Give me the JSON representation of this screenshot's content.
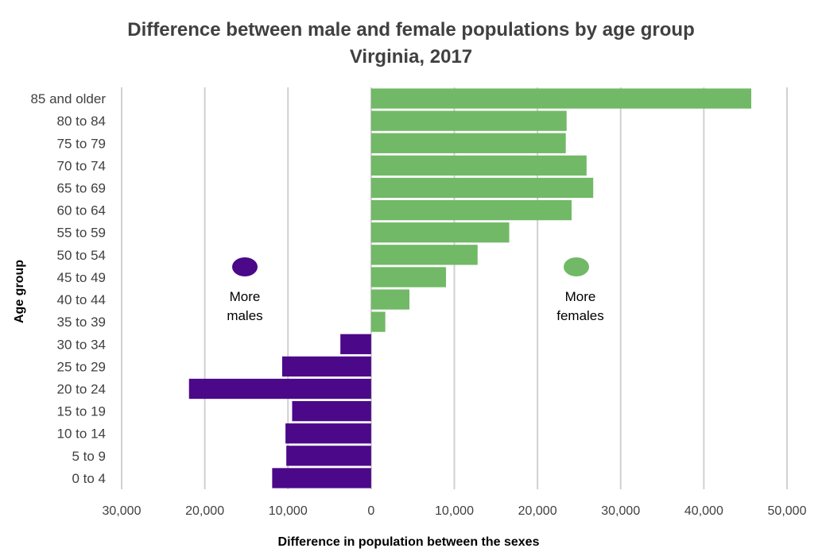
{
  "chart_data": {
    "type": "bar",
    "orientation": "horizontal",
    "title": "Difference between male and female populations by age group",
    "subtitle": "Virginia, 2017",
    "xlabel": "Difference in population between the sexes",
    "ylabel": "Age group",
    "xlim": [
      -30000,
      50000
    ],
    "xticks": [
      -30000,
      -20000,
      -10000,
      0,
      10000,
      20000,
      30000,
      40000,
      50000
    ],
    "xtick_labels": [
      "30,000",
      "20,000",
      "10,000",
      "0",
      "10,000",
      "20,000",
      "30,000",
      "40,000",
      "50,000"
    ],
    "grid": true,
    "categories": [
      "85 and older",
      "80 to 84",
      "75 to 79",
      "70 to 74",
      "65 to 69",
      "60 to 64",
      "55 to 59",
      "50 to 54",
      "45 to 49",
      "40 to 44",
      "35 to 39",
      "30 to 34",
      "25 to 29",
      "20 to 24",
      "15 to 19",
      "10 to 14",
      "5 to 9",
      "0 to 4"
    ],
    "values": [
      45700,
      23500,
      23400,
      25900,
      26700,
      24100,
      16600,
      12800,
      9000,
      4600,
      1700,
      -3700,
      -10700,
      -21900,
      -9500,
      -10300,
      -10200,
      -11900
    ],
    "colors": {
      "positive": "#71b966",
      "negative": "#4b0889"
    },
    "annotations": [
      {
        "id": "males",
        "line1": "More",
        "line2": "males",
        "color": "#4b0889"
      },
      {
        "id": "females",
        "line1": "More",
        "line2": "females",
        "color": "#71b966"
      }
    ]
  }
}
